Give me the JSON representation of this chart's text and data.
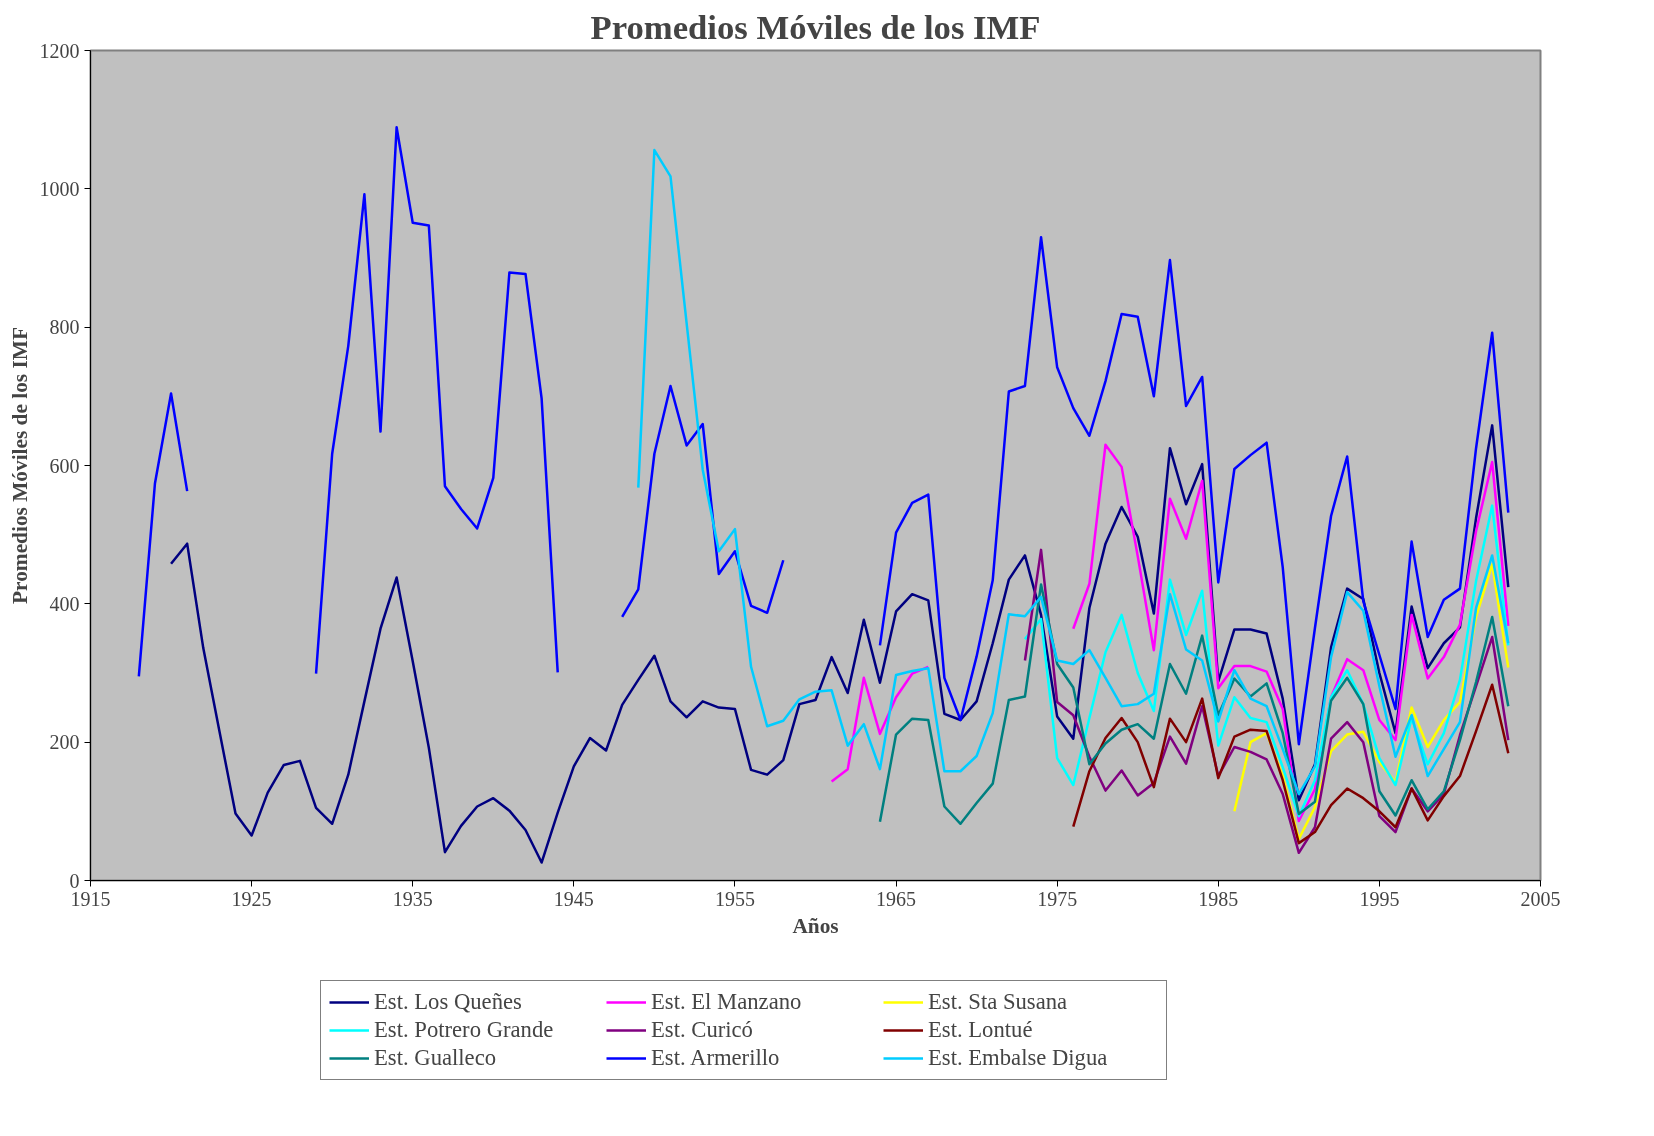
{
  "chart_data": {
    "type": "line",
    "title": "Promedios Móviles de los IMF",
    "xlabel": "Años",
    "ylabel": "Promedios Móviles de los IMF",
    "xlim": [
      1915,
      2005
    ],
    "xticks": [
      1915,
      1925,
      1935,
      1945,
      1955,
      1965,
      1975,
      1985,
      1995,
      2005
    ],
    "ylim": [
      0,
      1200
    ],
    "yticks": [
      0,
      200,
      400,
      600,
      800,
      1000,
      1200
    ],
    "legend": "bottom",
    "series": [
      {
        "name": "Est. Los Queñes",
        "color": "#000080",
        "x": [
          1920,
          1921,
          1922,
          1923,
          1924,
          1925,
          1926,
          1927,
          1928,
          1929,
          1930,
          1931,
          1932,
          1933,
          1934,
          1935,
          1936,
          1937,
          1938,
          1939,
          1940,
          1941,
          1942,
          1943,
          1944,
          1945,
          1946,
          1947,
          1948,
          1949,
          1950,
          1951,
          1952,
          1953,
          1954,
          1955,
          1956,
          1957,
          1958,
          1959,
          1960,
          1961,
          1962,
          1963,
          1964,
          1965,
          1966,
          1967,
          1968,
          1969,
          1970,
          1971,
          1972,
          1973,
          1974,
          1975,
          1976,
          1977,
          1978,
          1979,
          1980,
          1981,
          1982,
          1983,
          1984,
          1985,
          1986,
          1987,
          1988,
          1989,
          1990,
          1991,
          1992,
          1993,
          1994,
          1995,
          1996,
          1997,
          1998,
          1999,
          2000,
          2001,
          2002,
          2003
        ],
        "values": [
          458,
          487,
          336,
          216,
          97,
          65,
          127,
          167,
          173,
          105,
          82,
          153,
          259,
          364,
          438,
          317,
          192,
          41,
          79,
          107,
          119,
          101,
          73,
          26,
          98,
          165,
          206,
          188,
          254,
          290,
          325,
          259,
          236,
          259,
          250,
          248,
          160,
          153,
          174,
          255,
          261,
          323,
          271,
          377,
          286,
          389,
          414,
          405,
          241,
          232,
          259,
          343,
          435,
          470,
          384,
          237,
          205,
          394,
          487,
          540,
          497,
          386,
          625,
          544,
          602,
          288,
          363,
          363,
          357,
          263,
          116,
          168,
          337,
          422,
          407,
          300,
          213,
          396,
          307,
          343,
          366,
          524,
          658,
          424
        ]
      },
      {
        "name": "Est. El Manzano",
        "color": "#ff00ff",
        "x": [
          1961,
          1962,
          1963,
          1964,
          1965,
          1966,
          1967,
          1968,
          1969,
          1970,
          1971,
          1972,
          1973,
          1974,
          1975,
          1976,
          1977,
          1978,
          1979,
          1980,
          1981,
          1982,
          1983,
          1984,
          1985,
          1986,
          1987,
          1988,
          1989,
          1990,
          1991,
          1992,
          1993,
          1994,
          1995,
          1996,
          1997,
          1998,
          1999,
          2000,
          2001,
          2002,
          2003
        ],
        "values": [
          143,
          161,
          293,
          212,
          265,
          299,
          309,
          null,
          null,
          null,
          null,
          null,
          null,
          null,
          null,
          364,
          429,
          630,
          598,
          469,
          333,
          552,
          494,
          578,
          278,
          310,
          310,
          302,
          248,
          86,
          132,
          265,
          320,
          304,
          232,
          203,
          384,
          292,
          323,
          370,
          505,
          605,
          368
        ]
      },
      {
        "name": "Est. Sta Susana",
        "color": "#ffff00",
        "x": [
          1986,
          1987,
          1988,
          1989,
          1990,
          1991,
          1992,
          1993,
          1994,
          1995,
          1996,
          1997,
          1998,
          1999,
          2000,
          2001,
          2002,
          2003
        ],
        "values": [
          100,
          200,
          213,
          151,
          60,
          106,
          187,
          211,
          215,
          171,
          142,
          250,
          193,
          232,
          258,
          381,
          457,
          308
        ]
      },
      {
        "name": "Est. Potrero Grande",
        "color": "#00ffff",
        "x": [
          1973,
          1974,
          1975,
          1976,
          1977,
          1978,
          1979,
          1980,
          1981,
          1982,
          1983,
          1984,
          1985,
          1986,
          1987,
          1988,
          1989,
          1990,
          1991,
          1992,
          1993,
          1994,
          1995,
          1996,
          1997,
          1998,
          1999,
          2000,
          2001,
          2002,
          2003
        ],
        "values": [
          349,
          378,
          177,
          138,
          235,
          330,
          384,
          300,
          245,
          435,
          355,
          419,
          195,
          265,
          235,
          229,
          164,
          93,
          145,
          265,
          304,
          255,
          177,
          138,
          235,
          168,
          213,
          290,
          433,
          542,
          340
        ]
      },
      {
        "name": "Est. Curicó",
        "color": "#800080",
        "x": [
          1973,
          1974,
          1975,
          1976,
          1977,
          1978,
          1979,
          1980,
          1981,
          1982,
          1983,
          1984,
          1985,
          1986,
          1987,
          1988,
          1989,
          1990,
          1991,
          1992,
          1993,
          1994,
          1995,
          1996,
          1997,
          1998,
          1999,
          2000,
          2001,
          2002,
          2003
        ],
        "values": [
          318,
          478,
          258,
          239,
          179,
          130,
          159,
          123,
          141,
          208,
          169,
          252,
          151,
          193,
          186,
          175,
          125,
          40,
          77,
          205,
          229,
          200,
          93,
          70,
          133,
          100,
          125,
          210,
          281,
          352,
          203
        ]
      },
      {
        "name": "Est. Lontué",
        "color": "#800000",
        "x": [
          1976,
          1977,
          1978,
          1979,
          1980,
          1981,
          1982,
          1983,
          1984,
          1985,
          1986,
          1987,
          1988,
          1989,
          1990,
          1991,
          1992,
          1993,
          1994,
          1995,
          1996,
          1997,
          1998,
          1999,
          2000,
          2001,
          2002,
          2003
        ],
        "values": [
          78,
          158,
          206,
          235,
          200,
          135,
          234,
          200,
          263,
          148,
          208,
          218,
          216,
          145,
          54,
          70,
          109,
          133,
          119,
          100,
          77,
          133,
          87,
          122,
          151,
          216,
          283,
          184
        ]
      },
      {
        "name": "Est. Gualleco",
        "color": "#008080",
        "x": [
          1964,
          1965,
          1966,
          1967,
          1968,
          1969,
          1970,
          1971,
          1972,
          1973,
          1974,
          1975,
          1976,
          1977,
          1978,
          1979,
          1980,
          1981,
          1982,
          1983,
          1984,
          1985,
          1986,
          1987,
          1988,
          1989,
          1990,
          1991,
          1992,
          1993,
          1994,
          1995,
          1996,
          1997,
          1998,
          1999,
          2000,
          2001,
          2002,
          2003
        ],
        "values": [
          85,
          211,
          234,
          232,
          107,
          82,
          112,
          140,
          261,
          266,
          428,
          313,
          279,
          168,
          198,
          218,
          226,
          205,
          313,
          270,
          354,
          239,
          292,
          266,
          285,
          213,
          96,
          114,
          260,
          293,
          255,
          129,
          94,
          145,
          103,
          129,
          203,
          287,
          381,
          252
        ]
      },
      {
        "name": "Est. Armerillo",
        "color": "#0000ff",
        "x": [
          1918,
          1919,
          1920,
          1921,
          1922,
          1923,
          1924,
          1925,
          1926,
          1927,
          1928,
          1929,
          1930,
          1931,
          1932,
          1933,
          1934,
          1935,
          1936,
          1937,
          1938,
          1939,
          1940,
          1941,
          1942,
          1943,
          1944,
          1945,
          1946,
          1947,
          1948,
          1949,
          1950,
          1951,
          1952,
          1953,
          1954,
          1955,
          1956,
          1957,
          1958,
          1959,
          1960,
          1961,
          1962,
          1963,
          1964,
          1965,
          1966,
          1967,
          1968,
          1969,
          1970,
          1971,
          1972,
          1973,
          1974,
          1975,
          1976,
          1977,
          1978,
          1979,
          1980,
          1981,
          1982,
          1983,
          1984,
          1985,
          1986,
          1987,
          1988,
          1989,
          1990,
          1991,
          1992,
          1993,
          1994,
          1995,
          1996,
          1997,
          1998,
          1999,
          2000,
          2001,
          2002,
          2003
        ],
        "values": [
          295,
          574,
          704,
          563,
          null,
          null,
          null,
          null,
          null,
          null,
          null,
          299,
          617,
          773,
          992,
          649,
          1089,
          951,
          947,
          570,
          537,
          509,
          582,
          879,
          877,
          697,
          301,
          null,
          null,
          null,
          381,
          421,
          617,
          715,
          629,
          660,
          443,
          476,
          397,
          387,
          463,
          null,
          null,
          null,
          null,
          null,
          340,
          503,
          546,
          558,
          293,
          232,
          324,
          434,
          707,
          715,
          930,
          742,
          683,
          643,
          722,
          819,
          815,
          700,
          897,
          686,
          728,
          431,
          595,
          615,
          633,
          453,
          197,
          365,
          527,
          613,
          404,
          326,
          248,
          490,
          352,
          406,
          422,
          625,
          792,
          532
        ]
      },
      {
        "name": "Est. Embalse Digua",
        "color": "#00ccff",
        "x": [
          1949,
          1950,
          1951,
          1952,
          1953,
          1954,
          1955,
          1956,
          1957,
          1958,
          1959,
          1960,
          1961,
          1962,
          1963,
          1964,
          1965,
          1966,
          1967,
          1968,
          1969,
          1970,
          1971,
          1972,
          1973,
          1974,
          1975,
          1976,
          1977,
          1978,
          1979,
          1980,
          1981,
          1982,
          1983,
          1984,
          1985,
          1986,
          1987,
          1988,
          1989,
          1990,
          1991,
          1992,
          1993,
          1994,
          1995,
          1996,
          1997,
          1998,
          1999,
          2000,
          2001,
          2002,
          2003
        ],
        "values": [
          568,
          1056,
          1018,
          806,
          594,
          476,
          508,
          309,
          223,
          231,
          262,
          273,
          275,
          195,
          226,
          161,
          297,
          303,
          307,
          158,
          158,
          180,
          242,
          385,
          382,
          410,
          318,
          313,
          333,
          293,
          252,
          255,
          270,
          414,
          334,
          318,
          230,
          304,
          263,
          252,
          190,
          125,
          165,
          323,
          417,
          390,
          281,
          179,
          239,
          151,
          190,
          229,
          394,
          470,
          343
        ]
      }
    ]
  }
}
